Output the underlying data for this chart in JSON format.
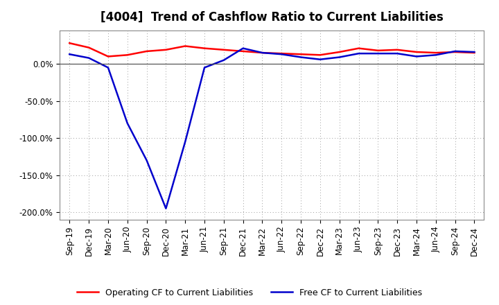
{
  "title": "[4004]  Trend of Cashflow Ratio to Current Liabilities",
  "x_labels": [
    "Sep-19",
    "Dec-19",
    "Mar-20",
    "Jun-20",
    "Sep-20",
    "Dec-20",
    "Mar-21",
    "Jun-21",
    "Sep-21",
    "Dec-21",
    "Mar-22",
    "Jun-22",
    "Sep-22",
    "Dec-22",
    "Mar-23",
    "Jun-23",
    "Sep-23",
    "Dec-23",
    "Mar-24",
    "Jun-24",
    "Sep-24",
    "Dec-24"
  ],
  "operating_cf": [
    0.28,
    0.22,
    0.1,
    0.12,
    0.17,
    0.19,
    0.24,
    0.21,
    0.19,
    0.17,
    0.15,
    0.14,
    0.13,
    0.12,
    0.16,
    0.21,
    0.18,
    0.19,
    0.16,
    0.15,
    0.16,
    0.15
  ],
  "free_cf": [
    0.13,
    0.08,
    -0.05,
    -0.8,
    -1.3,
    -1.95,
    -1.05,
    -0.05,
    0.05,
    0.21,
    0.15,
    0.13,
    0.09,
    0.06,
    0.09,
    0.14,
    0.14,
    0.14,
    0.1,
    0.12,
    0.17,
    0.16
  ],
  "operating_color": "#ff0000",
  "free_color": "#0000cc",
  "ylim": [
    -2.1,
    0.45
  ],
  "yticks": [
    0.0,
    -0.5,
    -1.0,
    -1.5,
    -2.0
  ],
  "ytick_labels": [
    "0.0%",
    "-50.0%",
    "-100.0%",
    "-150.0%",
    "-200.0%"
  ],
  "background_color": "#ffffff",
  "plot_bg_color": "#ffffff",
  "grid_color": "#aaaaaa",
  "zero_line_color": "#555555",
  "legend_op": "Operating CF to Current Liabilities",
  "legend_free": "Free CF to Current Liabilities",
  "title_fontsize": 12,
  "axis_fontsize": 8.5,
  "legend_fontsize": 9
}
